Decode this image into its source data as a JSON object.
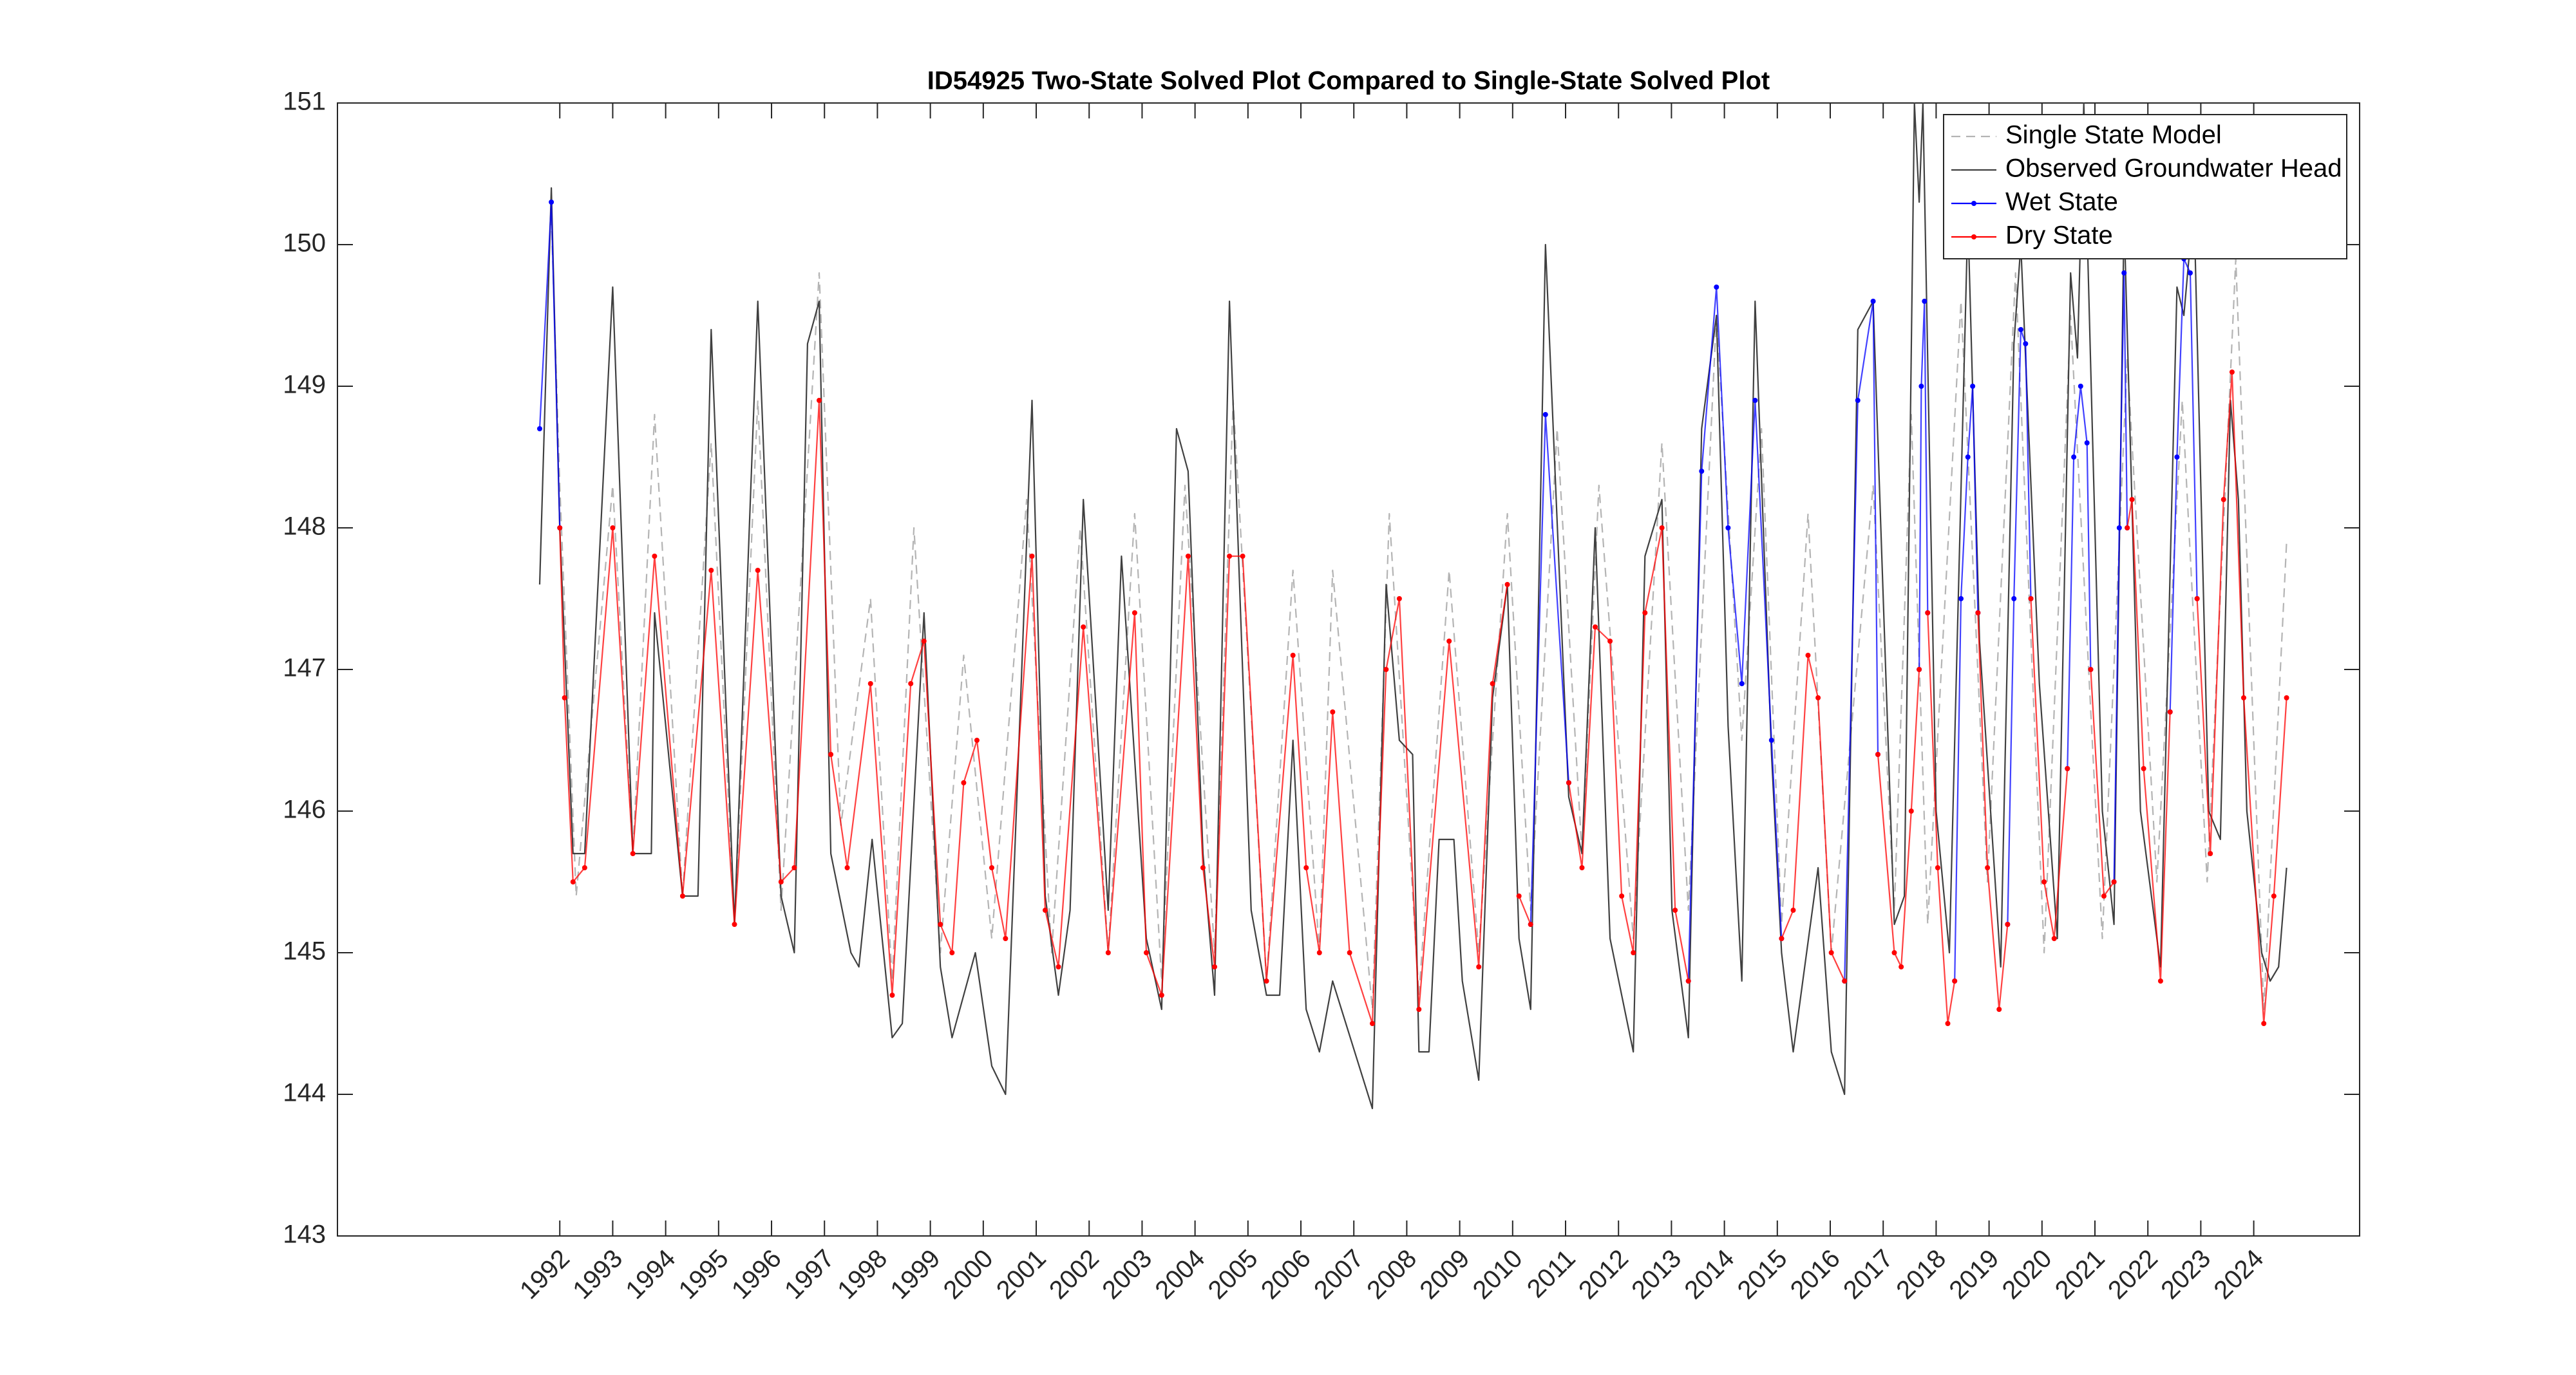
{
  "chart_data": {
    "type": "line",
    "title": "ID54925 Two-State Solved Plot Compared to Single-State Solved Plot",
    "xlim": [
      1987.8,
      2026.0
    ],
    "ylim": [
      143,
      151
    ],
    "xticks": [
      1992,
      1993,
      1994,
      1995,
      1996,
      1997,
      1998,
      1999,
      2000,
      2001,
      2002,
      2003,
      2004,
      2005,
      2006,
      2007,
      2008,
      2009,
      2010,
      2011,
      2012,
      2013,
      2014,
      2015,
      2016,
      2017,
      2018,
      2019,
      2020,
      2021,
      2022,
      2023,
      2024
    ],
    "yticks": [
      143,
      144,
      145,
      146,
      147,
      148,
      149,
      150,
      151
    ],
    "grid": false,
    "legend": "northeast",
    "series": [
      {
        "name": "Single State Model",
        "color": "#b4b4b4",
        "linestyle": "--",
        "marker": "none",
        "x": [
          1991.84,
          1992.0,
          1992.31,
          1993.0,
          1993.38,
          1993.79,
          1994.32,
          1994.86,
          1995.3,
          1995.74,
          1996.18,
          1996.9,
          1997.31,
          1997.87,
          1998.28,
          1998.69,
          1999.19,
          1999.63,
          2000.16,
          2000.82,
          2001.29,
          2001.83,
          2002.36,
          2002.86,
          2003.37,
          2003.81,
          2004.37,
          2004.72,
          2005.35,
          2005.85,
          2006.35,
          2006.6,
          2007.35,
          2007.67,
          2008.23,
          2008.8,
          2009.36,
          2009.9,
          2010.34,
          2010.84,
          2011.31,
          2011.63,
          2012.28,
          2012.82,
          2013.32,
          2013.85,
          2014.33,
          2014.7,
          2015.08,
          2015.58,
          2016.02,
          2016.81,
          2017.21,
          2017.53,
          2017.84,
          2018.47,
          2018.97,
          2019.5,
          2020.04,
          2020.54,
          2021.14,
          2021.61,
          2022.17,
          2022.65,
          2023.12,
          2023.66,
          2024.19,
          2024.62
        ],
        "values": [
          150.2,
          148.3,
          145.4,
          148.3,
          145.7,
          148.8,
          145.4,
          148.6,
          145.2,
          148.9,
          145.3,
          149.8,
          145.9,
          147.5,
          144.8,
          148.0,
          145.0,
          147.1,
          145.1,
          148.2,
          145.0,
          148.0,
          145.0,
          148.1,
          144.8,
          148.3,
          145.0,
          148.9,
          144.8,
          147.7,
          145.0,
          147.7,
          144.6,
          148.1,
          144.7,
          147.7,
          145.0,
          148.1,
          145.3,
          148.7,
          145.7,
          148.3,
          145.1,
          148.6,
          145.3,
          149.5,
          146.5,
          148.7,
          145.2,
          148.1,
          145.0,
          148.3,
          145.3,
          148.8,
          145.2,
          149.6,
          145.5,
          149.8,
          145.0,
          149.5,
          145.1,
          149.2,
          145.5,
          148.9,
          145.5,
          149.9,
          144.6,
          147.9
        ]
      },
      {
        "name": "Observed Groundwater Head",
        "color": "#404040",
        "linestyle": "-",
        "marker": "none",
        "x": [
          1991.62,
          1991.84,
          1992.0,
          1992.25,
          1992.47,
          1993.0,
          1993.38,
          1993.73,
          1993.79,
          1994.32,
          1994.61,
          1994.86,
          1995.3,
          1995.74,
          1996.18,
          1996.43,
          1996.68,
          1996.9,
          1997.12,
          1997.5,
          1997.65,
          1997.9,
          1998.28,
          1998.47,
          1998.88,
          1999.19,
          1999.41,
          1999.85,
          2000.16,
          2000.42,
          2000.92,
          2001.17,
          2001.42,
          2001.64,
          2001.89,
          2002.36,
          2002.61,
          2003.08,
          2003.37,
          2003.65,
          2003.87,
          2004.15,
          2004.37,
          2004.65,
          2005.06,
          2005.35,
          2005.6,
          2005.85,
          2006.1,
          2006.35,
          2006.6,
          2007.35,
          2007.61,
          2007.86,
          2008.11,
          2008.23,
          2008.42,
          2008.61,
          2008.89,
          2009.05,
          2009.36,
          2009.62,
          2009.9,
          2010.12,
          2010.34,
          2010.62,
          2011.06,
          2011.31,
          2011.56,
          2011.84,
          2012.28,
          2012.5,
          2012.82,
          2013.01,
          2013.32,
          2013.57,
          2013.85,
          2014.07,
          2014.33,
          2014.58,
          2014.89,
          2015.08,
          2015.3,
          2015.77,
          2016.02,
          2016.27,
          2016.52,
          2016.81,
          2017.21,
          2017.4,
          2017.59,
          2017.68,
          2017.75,
          2018.0,
          2018.25,
          2018.6,
          2018.82,
          2019.22,
          2019.47,
          2019.6,
          2019.95,
          2020.29,
          2020.54,
          2020.67,
          2020.79,
          2021.14,
          2021.36,
          2021.55,
          2021.86,
          2022.24,
          2022.55,
          2022.68,
          2022.87,
          2023.15,
          2023.37,
          2023.56,
          2023.71,
          2023.87,
          2024.15,
          2024.31,
          2024.47,
          2024.62
        ],
        "values": [
          147.6,
          150.4,
          148.0,
          145.7,
          145.7,
          149.7,
          145.7,
          145.7,
          147.4,
          145.4,
          145.4,
          149.4,
          145.2,
          149.6,
          145.4,
          145.0,
          149.3,
          149.6,
          145.7,
          145.0,
          144.9,
          145.8,
          144.4,
          144.5,
          147.4,
          144.9,
          144.4,
          145.0,
          144.2,
          144.0,
          148.9,
          145.4,
          144.7,
          145.3,
          148.2,
          145.3,
          147.8,
          145.1,
          144.6,
          148.7,
          148.4,
          145.7,
          144.7,
          149.6,
          145.3,
          144.7,
          144.7,
          146.5,
          144.6,
          144.3,
          144.8,
          143.9,
          147.6,
          146.5,
          146.4,
          144.3,
          144.3,
          145.8,
          145.8,
          144.8,
          144.1,
          146.8,
          147.6,
          145.1,
          144.6,
          150.0,
          146.1,
          145.7,
          148.0,
          145.1,
          144.3,
          147.8,
          148.2,
          145.3,
          144.4,
          148.7,
          149.5,
          146.6,
          144.8,
          149.6,
          146.4,
          145.0,
          144.3,
          145.6,
          144.3,
          144.0,
          149.4,
          149.6,
          145.2,
          145.4,
          151.0,
          150.3,
          151.0,
          146.0,
          145.0,
          150.2,
          147.2,
          144.9,
          149.3,
          150.0,
          146.9,
          145.1,
          149.8,
          149.2,
          151.0,
          146.0,
          145.2,
          150.2,
          146.0,
          144.9,
          149.7,
          149.5,
          150.3,
          146.0,
          145.8,
          148.9,
          148.2,
          146.0,
          145.0,
          144.8,
          144.9,
          145.6
        ]
      },
      {
        "name": "Wet State",
        "color": "#0000ff",
        "linestyle": "-",
        "marker": ".",
        "x": [
          1991.62,
          1991.84,
          1992.0,
          null,
          2010.34,
          2010.62,
          2011.06,
          null,
          2013.32,
          2013.57,
          2013.85,
          2014.07,
          2014.33,
          2014.58,
          2014.89,
          2015.08,
          null,
          2016.27,
          2016.52,
          2016.81,
          2016.9,
          null,
          2017.68,
          2017.72,
          2017.78,
          2017.84,
          null,
          2018.35,
          2018.47,
          2018.6,
          2018.69,
          2018.79,
          null,
          2019.35,
          2019.47,
          2019.6,
          2019.69,
          2019.79,
          null,
          2020.48,
          2020.6,
          2020.73,
          2020.85,
          2020.92,
          null,
          2021.36,
          2021.46,
          2021.55,
          2021.61,
          null,
          2022.42,
          2022.55,
          2022.68,
          2022.8,
          2022.93
        ],
        "values": [
          148.7,
          150.3,
          148.0,
          null,
          145.2,
          148.8,
          146.2,
          null,
          144.8,
          148.4,
          149.7,
          148.0,
          146.9,
          148.9,
          146.5,
          145.1,
          null,
          144.8,
          148.9,
          149.6,
          146.4,
          null,
          147.0,
          149.0,
          149.6,
          147.4,
          null,
          144.8,
          147.5,
          148.5,
          149.0,
          147.4,
          null,
          145.2,
          147.5,
          149.4,
          149.3,
          147.5,
          null,
          146.3,
          148.5,
          149.0,
          148.6,
          147.0,
          null,
          145.5,
          148.0,
          149.8,
          148.0,
          null,
          146.7,
          148.5,
          149.9,
          149.8,
          147.5
        ]
      },
      {
        "name": "Dry State",
        "color": "#ff0000",
        "linestyle": "-",
        "marker": ".",
        "x": [
          1992.0,
          1992.09,
          1992.25,
          1992.47,
          1993.0,
          1993.38,
          1993.79,
          1994.32,
          1994.86,
          1995.3,
          1995.74,
          1996.18,
          1996.43,
          1996.9,
          1997.12,
          1997.43,
          1997.87,
          1998.28,
          1998.63,
          1998.88,
          1999.19,
          1999.41,
          1999.63,
          1999.88,
          2000.16,
          2000.42,
          2000.92,
          2001.17,
          2001.42,
          2001.89,
          2002.36,
          2002.86,
          2003.08,
          2003.37,
          2003.87,
          2004.15,
          2004.37,
          2004.65,
          2004.9,
          2005.35,
          2005.85,
          2006.1,
          2006.35,
          2006.6,
          2006.92,
          2007.35,
          2007.61,
          2007.86,
          2008.23,
          2008.8,
          2009.36,
          2009.62,
          2009.9,
          null,
          2010.12,
          2010.34,
          null,
          2011.06,
          2011.31,
          2011.56,
          2011.84,
          2012.06,
          2012.28,
          2012.5,
          2012.82,
          2013.07,
          2013.32,
          null,
          2015.08,
          2015.3,
          2015.58,
          2015.77,
          2016.02,
          2016.27,
          null,
          2016.9,
          2017.21,
          2017.34,
          2017.53,
          2017.68,
          null,
          2017.84,
          2018.03,
          2018.22,
          2018.35,
          null,
          2018.79,
          2018.97,
          2019.19,
          2019.35,
          null,
          2019.79,
          2020.04,
          2020.23,
          2020.48,
          null,
          2020.92,
          2021.17,
          2021.36,
          null,
          2021.61,
          2021.7,
          2021.92,
          2022.24,
          2022.42,
          null,
          2022.93,
          2023.18,
          2023.43,
          2023.59,
          2023.81,
          2024.19,
          2024.38,
          2024.62
        ],
        "values": [
          148.0,
          146.8,
          145.5,
          145.6,
          148.0,
          145.7,
          147.8,
          145.4,
          147.7,
          145.2,
          147.7,
          145.5,
          145.6,
          148.9,
          146.4,
          145.6,
          146.9,
          144.7,
          146.9,
          147.2,
          145.2,
          145.0,
          146.2,
          146.5,
          145.6,
          145.1,
          147.8,
          145.3,
          144.9,
          147.3,
          145.0,
          147.4,
          145.0,
          144.7,
          147.8,
          145.6,
          144.9,
          147.8,
          147.8,
          144.8,
          147.1,
          145.6,
          145.0,
          146.7,
          145.0,
          144.5,
          147.0,
          147.5,
          144.6,
          147.2,
          144.9,
          146.9,
          147.6,
          null,
          145.4,
          145.2,
          null,
          146.2,
          145.6,
          147.3,
          147.2,
          145.4,
          145.0,
          147.4,
          148.0,
          145.3,
          144.8,
          null,
          145.1,
          145.3,
          147.1,
          146.8,
          145.0,
          144.8,
          null,
          146.4,
          145.0,
          144.9,
          146.0,
          147.0,
          null,
          147.4,
          145.6,
          144.5,
          144.8,
          null,
          147.4,
          145.6,
          144.6,
          145.2,
          null,
          147.5,
          145.5,
          145.1,
          146.3,
          null,
          147.0,
          145.4,
          145.5,
          null,
          148.0,
          148.2,
          146.3,
          144.8,
          146.7,
          null,
          147.5,
          145.7,
          148.2,
          149.1,
          146.8,
          144.5,
          145.4,
          146.8
        ]
      }
    ]
  }
}
